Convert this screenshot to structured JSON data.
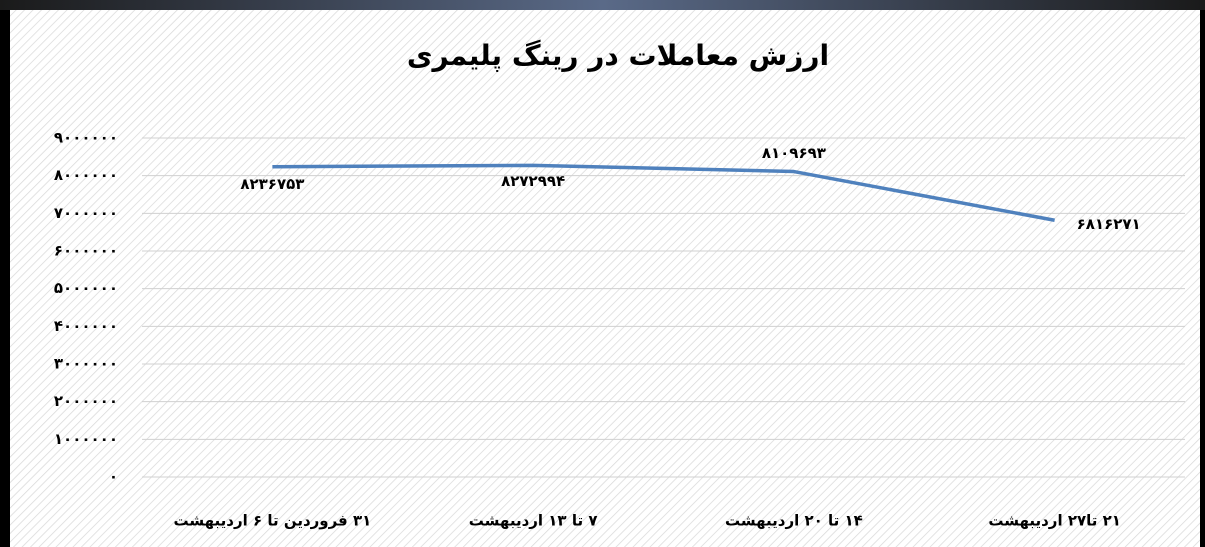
{
  "chart_data": {
    "type": "line",
    "title": "ارزش معاملات در رینگ پلیمری",
    "categories": [
      "۳۱ فروردین تا ۶ اردیبهشت",
      "۷ تا ۱۳ اردیبهشت",
      "۱۴ تا ۲۰ اردیبهشت",
      "۲۱ تا۲۷ اردیبهشت"
    ],
    "values": [
      8236753,
      8272994,
      8109693,
      6816271
    ],
    "value_labels": [
      "۸۲۳۶۷۵۳",
      "۸۲۷۲۹۹۴",
      "۸۱۰۹۶۹۳",
      "۶۸۱۶۲۷۱"
    ],
    "color": "#4f81bd",
    "ylim": [
      0,
      9000000
    ],
    "yticks": [
      {
        "value": 0,
        "label": "۰"
      },
      {
        "value": 1000000,
        "label": "۱۰۰۰۰۰۰"
      },
      {
        "value": 2000000,
        "label": "۲۰۰۰۰۰۰"
      },
      {
        "value": 3000000,
        "label": "۳۰۰۰۰۰۰"
      },
      {
        "value": 4000000,
        "label": "۴۰۰۰۰۰۰"
      },
      {
        "value": 5000000,
        "label": "۵۰۰۰۰۰۰"
      },
      {
        "value": 6000000,
        "label": "۶۰۰۰۰۰۰"
      },
      {
        "value": 7000000,
        "label": "۷۰۰۰۰۰۰"
      },
      {
        "value": 8000000,
        "label": "۸۰۰۰۰۰۰"
      },
      {
        "value": 9000000,
        "label": "۹۰۰۰۰۰۰"
      }
    ],
    "grid": true
  }
}
